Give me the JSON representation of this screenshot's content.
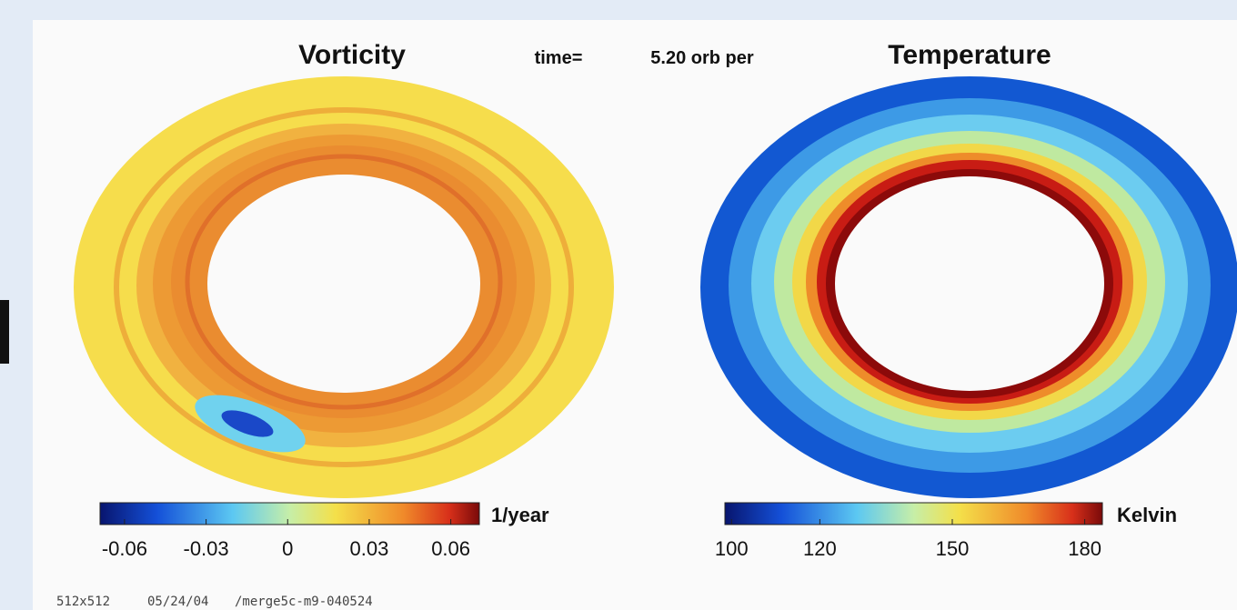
{
  "header": {
    "left_title": "Vorticity",
    "time_label": "time=",
    "time_value": "5.20 orb per",
    "right_title": "Temperature"
  },
  "colorbars": [
    {
      "unit": "1/year",
      "lim": [
        -0.069,
        0.0705
      ],
      "ticks": [
        -0.06,
        -0.03,
        0,
        0.03,
        0.06
      ]
    },
    {
      "unit": "Kelvin",
      "lim": [
        98.5,
        184
      ],
      "ticks": [
        100,
        120,
        150,
        180
      ]
    }
  ],
  "footer": [
    "512x512",
    "05/24/04",
    "/merge5c-m9-040524"
  ]
}
